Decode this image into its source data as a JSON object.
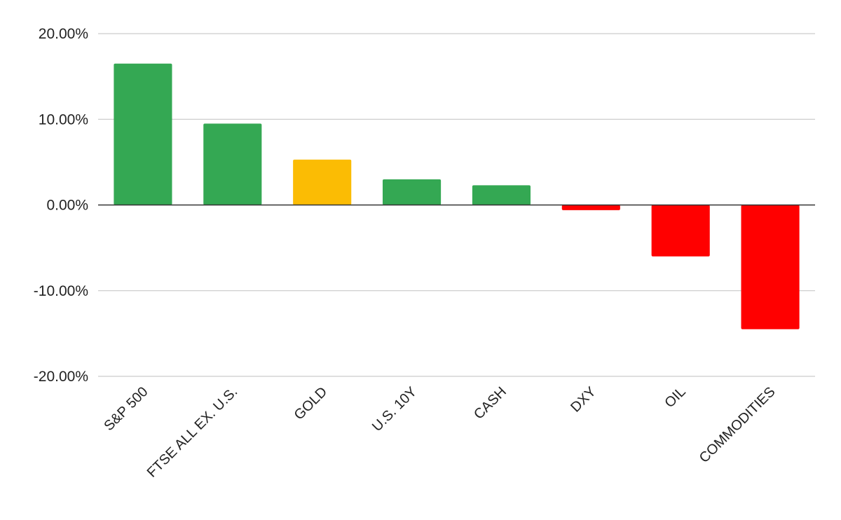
{
  "chart_data": {
    "type": "bar",
    "title": "",
    "xlabel": "",
    "ylabel": "",
    "categories": [
      "S&P 500",
      "FTSE ALL EX. U.S.",
      "GOLD",
      "U.S. 10Y",
      "CASH",
      "DXY",
      "OIL",
      "COMMODITIES"
    ],
    "values": [
      16.5,
      9.5,
      5.3,
      3.0,
      2.3,
      -0.6,
      -6.0,
      -14.5
    ],
    "bar_colors": [
      "#34a853",
      "#34a853",
      "#fbbc04",
      "#34a853",
      "#34a853",
      "#ff0000",
      "#ff0000",
      "#ff0000"
    ],
    "ylim": [
      -20,
      20
    ],
    "yticks": [
      20,
      10,
      0,
      -10,
      -20
    ],
    "ytick_labels": [
      "20.00%",
      "10.00%",
      "0.00%",
      "-10.00%",
      "-20.00%"
    ],
    "grid": true,
    "legend": "none"
  }
}
